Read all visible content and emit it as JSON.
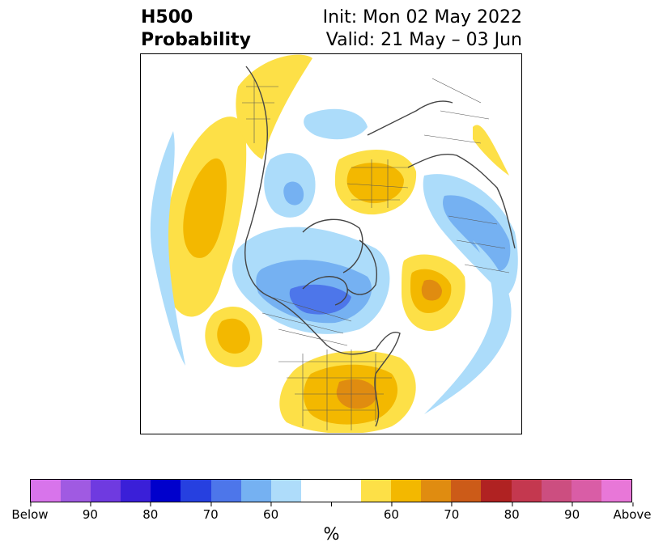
{
  "header": {
    "title_line1": "H500",
    "title_line2": "Probability",
    "init_text": "Init: Mon 02 May 2022",
    "valid_text": "Valid: 21 May – 03 Jun"
  },
  "colorbar": {
    "unit": "%",
    "colors": [
      "#d874eb",
      "#a05ae2",
      "#6f3ae0",
      "#3a1fd8",
      "#0000cc",
      "#2640e0",
      "#4d76ea",
      "#75b1f2",
      "#aedcfa",
      "#ffffff",
      "#ffffff",
      "#fde047",
      "#f3b800",
      "#e08c10",
      "#cc5b18",
      "#b02222",
      "#c4384f",
      "#cc4e80",
      "#d95da6",
      "#e877d8"
    ],
    "ticks": [
      "Below",
      "90",
      "80",
      "70",
      "60",
      "",
      "60",
      "70",
      "80",
      "90",
      "Above"
    ]
  },
  "map_colors": {
    "blue_light": "#acdcfa",
    "blue_mid": "#75b1f2",
    "blue_strong": "#4d76ea",
    "yellow": "#fde047",
    "orange": "#f3b800",
    "dark_orange": "#e08c10",
    "boundary": "#444444"
  }
}
